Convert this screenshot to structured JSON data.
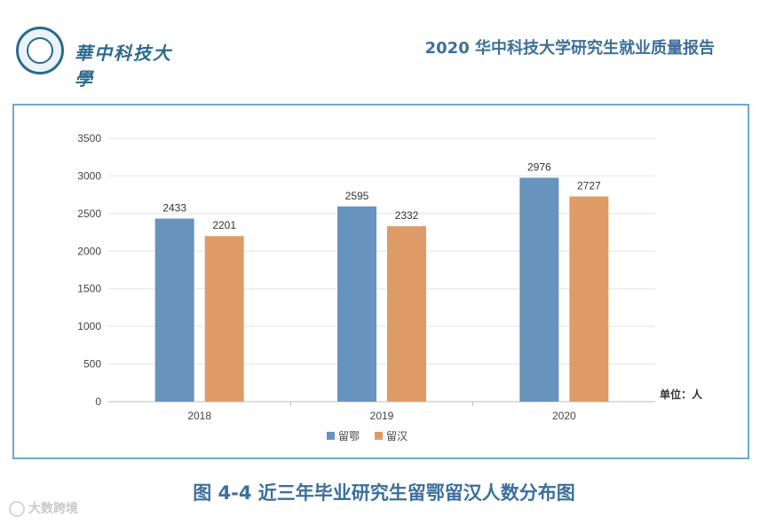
{
  "header": {
    "logo_text": "華中科技大學",
    "report_title": "2020 华中科技大学研究生就业质量报告"
  },
  "chart_data": {
    "type": "bar",
    "categories": [
      "2018",
      "2019",
      "2020"
    ],
    "series": [
      {
        "name": "留鄂",
        "values": [
          2433,
          2595,
          2976
        ],
        "color": "#6893bd"
      },
      {
        "name": "留汉",
        "values": [
          2201,
          2332,
          2727
        ],
        "color": "#de9b68"
      }
    ],
    "ylim": [
      0,
      3500
    ],
    "yticks": [
      0,
      500,
      1000,
      1500,
      2000,
      2500,
      3000,
      3500
    ],
    "unit_label": "单位：人",
    "grid": true,
    "legend_position": "bottom"
  },
  "caption": "图 4-4 近三年毕业研究生留鄂留汉人数分布图",
  "watermark": "大数跨境"
}
